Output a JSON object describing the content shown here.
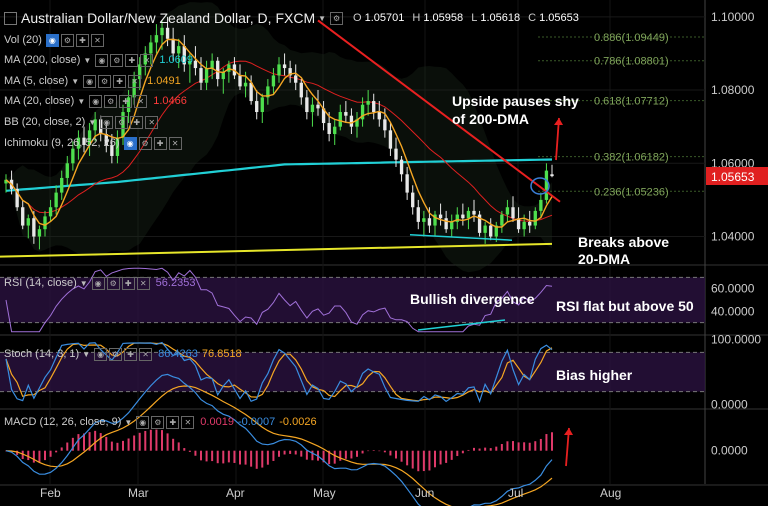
{
  "header": {
    "title": "Australian Dollar/New Zealand Dollar, D, FXCM",
    "ohlc": [
      {
        "k": "O",
        "v": "1.05701"
      },
      {
        "k": "H",
        "v": "1.05958"
      },
      {
        "k": "L",
        "v": "1.05618"
      },
      {
        "k": "C",
        "v": "1.05653"
      }
    ]
  },
  "indicators": [
    {
      "label": "Vol (20)",
      "value": "",
      "color": "#cccccc"
    },
    {
      "label": "MA (200, close)",
      "value": "1.0609",
      "color": "#21d0d6"
    },
    {
      "label": "MA (5, close)",
      "value": "1.0491",
      "color": "#f5a623"
    },
    {
      "label": "MA (20, close)",
      "value": "1.0466",
      "color": "#ff3b3b"
    },
    {
      "label": "BB (20, close, 2)",
      "value": "",
      "color": "#cccccc"
    },
    {
      "label": "Ichimoku (9, 26, 52, 26)",
      "value": "",
      "color": "#cccccc"
    }
  ],
  "sub_headers": {
    "rsi": {
      "label": "RSI (14, close)",
      "values": [
        {
          "v": "56.2353",
          "color": "#a070d8"
        }
      ]
    },
    "stoch": {
      "label": "Stoch (14, 3, 1)",
      "values": [
        {
          "v": "86.4263",
          "color": "#3a8de0"
        },
        {
          "v": "76.8518",
          "color": "#f5a623"
        }
      ]
    },
    "macd": {
      "label": "MACD (12, 26, close, 9)",
      "values": [
        {
          "v": "0.0019",
          "color": "#e03a6a"
        },
        {
          "v": "-0.0007",
          "color": "#3a8de0"
        },
        {
          "v": "-0.0026",
          "color": "#f5a623"
        }
      ]
    }
  },
  "chart_data": {
    "type": "candlestick",
    "symbol": "AUDNZD",
    "timeframe": "D",
    "x_labels": [
      "Feb",
      "Mar",
      "Apr",
      "May",
      "Jun",
      "Jul",
      "Aug"
    ],
    "price_axis": {
      "ticks": [
        "1.10000",
        "1.08000",
        "1.06000",
        "1.04000"
      ],
      "range": [
        1.0325,
        1.1035
      ]
    },
    "last_price": "1.05653",
    "fib_levels": [
      {
        "label": "0.886(1.09449)",
        "price": 1.09449
      },
      {
        "label": "0.786(1.08801)",
        "price": 1.08801
      },
      {
        "label": "0.618(1.07712)",
        "price": 1.07712
      },
      {
        "label": "0.382(1.06182)",
        "price": 1.06182
      },
      {
        "label": "0.236(1.05236)",
        "price": 1.05236
      }
    ],
    "candles": [
      [
        1.0545,
        1.057,
        1.052,
        1.0555
      ],
      [
        1.0555,
        1.058,
        1.0515,
        1.053
      ],
      [
        1.053,
        1.0545,
        1.047,
        1.048
      ],
      [
        1.048,
        1.05,
        1.042,
        1.043
      ],
      [
        1.043,
        1.046,
        1.0395,
        1.045
      ],
      [
        1.045,
        1.047,
        1.038,
        1.04
      ],
      [
        1.04,
        1.043,
        1.0365,
        1.042
      ],
      [
        1.042,
        1.047,
        1.04,
        1.0455
      ],
      [
        1.0455,
        1.05,
        1.044,
        1.048
      ],
      [
        1.048,
        1.054,
        1.046,
        1.052
      ],
      [
        1.052,
        1.058,
        1.05,
        1.056
      ],
      [
        1.056,
        1.062,
        1.054,
        1.06
      ],
      [
        1.06,
        1.066,
        1.058,
        1.064
      ],
      [
        1.064,
        1.069,
        1.061,
        1.067
      ],
      [
        1.067,
        1.07,
        1.063,
        1.065
      ],
      [
        1.065,
        1.071,
        1.062,
        1.069
      ],
      [
        1.069,
        1.074,
        1.066,
        1.072
      ],
      [
        1.072,
        1.073,
        1.066,
        1.068
      ],
      [
        1.068,
        1.071,
        1.063,
        1.065
      ],
      [
        1.065,
        1.068,
        1.06,
        1.062
      ],
      [
        1.062,
        1.069,
        1.06,
        1.067
      ],
      [
        1.067,
        1.076,
        1.065,
        1.074
      ],
      [
        1.074,
        1.08,
        1.071,
        1.078
      ],
      [
        1.078,
        1.085,
        1.076,
        1.083
      ],
      [
        1.083,
        1.089,
        1.08,
        1.087
      ],
      [
        1.087,
        1.092,
        1.084,
        1.09
      ],
      [
        1.09,
        1.095,
        1.087,
        1.093
      ],
      [
        1.093,
        1.098,
        1.09,
        1.095
      ],
      [
        1.095,
        1.099,
        1.091,
        1.097
      ],
      [
        1.097,
        1.1,
        1.092,
        1.094
      ],
      [
        1.094,
        1.097,
        1.088,
        1.09
      ],
      [
        1.09,
        1.094,
        1.086,
        1.092
      ],
      [
        1.092,
        1.095,
        1.085,
        1.087
      ],
      [
        1.087,
        1.09,
        1.082,
        1.088
      ],
      [
        1.088,
        1.092,
        1.084,
        1.086
      ],
      [
        1.086,
        1.089,
        1.08,
        1.082
      ],
      [
        1.082,
        1.088,
        1.08,
        1.086
      ],
      [
        1.086,
        1.09,
        1.083,
        1.088
      ],
      [
        1.088,
        1.089,
        1.081,
        1.083
      ],
      [
        1.083,
        1.086,
        1.079,
        1.085
      ],
      [
        1.085,
        1.088,
        1.082,
        1.087
      ],
      [
        1.087,
        1.089,
        1.083,
        1.084
      ],
      [
        1.084,
        1.087,
        1.08,
        1.081
      ],
      [
        1.081,
        1.085,
        1.078,
        1.082
      ],
      [
        1.082,
        1.084,
        1.076,
        1.077
      ],
      [
        1.077,
        1.08,
        1.072,
        1.074
      ],
      [
        1.074,
        1.079,
        1.071,
        1.078
      ],
      [
        1.078,
        1.083,
        1.076,
        1.081
      ],
      [
        1.081,
        1.086,
        1.079,
        1.084
      ],
      [
        1.084,
        1.089,
        1.082,
        1.087
      ],
      [
        1.087,
        1.09,
        1.084,
        1.086
      ],
      [
        1.086,
        1.088,
        1.082,
        1.084
      ],
      [
        1.084,
        1.087,
        1.08,
        1.082
      ],
      [
        1.082,
        1.083,
        1.076,
        1.078
      ],
      [
        1.078,
        1.08,
        1.072,
        1.074
      ],
      [
        1.074,
        1.078,
        1.07,
        1.076
      ],
      [
        1.076,
        1.08,
        1.073,
        1.075
      ],
      [
        1.075,
        1.077,
        1.069,
        1.071
      ],
      [
        1.071,
        1.074,
        1.066,
        1.068
      ],
      [
        1.068,
        1.072,
        1.065,
        1.07
      ],
      [
        1.07,
        1.076,
        1.069,
        1.074
      ],
      [
        1.074,
        1.077,
        1.071,
        1.073
      ],
      [
        1.073,
        1.075,
        1.068,
        1.07
      ],
      [
        1.07,
        1.074,
        1.067,
        1.072
      ],
      [
        1.072,
        1.078,
        1.07,
        1.076
      ],
      [
        1.076,
        1.08,
        1.073,
        1.077
      ],
      [
        1.077,
        1.079,
        1.072,
        1.074
      ],
      [
        1.074,
        1.077,
        1.07,
        1.072
      ],
      [
        1.072,
        1.075,
        1.067,
        1.069
      ],
      [
        1.069,
        1.071,
        1.062,
        1.064
      ],
      [
        1.064,
        1.067,
        1.059,
        1.061
      ],
      [
        1.061,
        1.062,
        1.055,
        1.057
      ],
      [
        1.057,
        1.059,
        1.05,
        1.052
      ],
      [
        1.052,
        1.054,
        1.046,
        1.048
      ],
      [
        1.048,
        1.05,
        1.042,
        1.044
      ],
      [
        1.044,
        1.047,
        1.04,
        1.045
      ],
      [
        1.045,
        1.048,
        1.041,
        1.043
      ],
      [
        1.043,
        1.047,
        1.04,
        1.046
      ],
      [
        1.046,
        1.049,
        1.043,
        1.045
      ],
      [
        1.045,
        1.047,
        1.041,
        1.042
      ],
      [
        1.042,
        1.046,
        1.04,
        1.044
      ],
      [
        1.044,
        1.048,
        1.042,
        1.046
      ],
      [
        1.046,
        1.049,
        1.043,
        1.045
      ],
      [
        1.045,
        1.048,
        1.042,
        1.047
      ],
      [
        1.047,
        1.05,
        1.044,
        1.046
      ],
      [
        1.046,
        1.047,
        1.04,
        1.041
      ],
      [
        1.041,
        1.044,
        1.038,
        1.043
      ],
      [
        1.043,
        1.045,
        1.039,
        1.04
      ],
      [
        1.04,
        1.044,
        1.0385,
        1.043
      ],
      [
        1.043,
        1.047,
        1.041,
        1.046
      ],
      [
        1.046,
        1.05,
        1.044,
        1.048
      ],
      [
        1.048,
        1.051,
        1.044,
        1.045
      ],
      [
        1.045,
        1.048,
        1.041,
        1.042
      ],
      [
        1.042,
        1.046,
        1.04,
        1.044
      ],
      [
        1.044,
        1.047,
        1.041,
        1.043
      ],
      [
        1.043,
        1.048,
        1.042,
        1.047
      ],
      [
        1.047,
        1.052,
        1.045,
        1.05
      ],
      [
        1.05,
        1.06,
        1.049,
        1.058
      ],
      [
        1.057,
        1.0596,
        1.0562,
        1.0565
      ]
    ],
    "annotations": [
      {
        "text": "Upside pauses shy",
        "color": "#ffffff"
      },
      {
        "text": "of 200-DMA",
        "color": "#ffffff"
      },
      {
        "text": "Breaks above",
        "color": "#ffffff"
      },
      {
        "text": "20-DMA",
        "color": "#ffffff"
      },
      {
        "text": "Bullish divergence",
        "color": "#ffffff"
      },
      {
        "text": "RSI flat but above 50",
        "color": "#ffffff"
      },
      {
        "text": "Bias higher",
        "color": "#ffffff"
      }
    ],
    "rsi": {
      "ticks": [
        "60.0000",
        "40.0000"
      ],
      "range": [
        20,
        80
      ],
      "levels": [
        70,
        30
      ]
    },
    "stoch": {
      "ticks": [
        "100.0000",
        "0.0000"
      ],
      "range": [
        -5,
        105
      ],
      "levels": [
        80,
        20
      ]
    },
    "macd": {
      "ticks": [
        "0.0000"
      ],
      "range": [
        -0.0045,
        0.0055
      ]
    }
  }
}
